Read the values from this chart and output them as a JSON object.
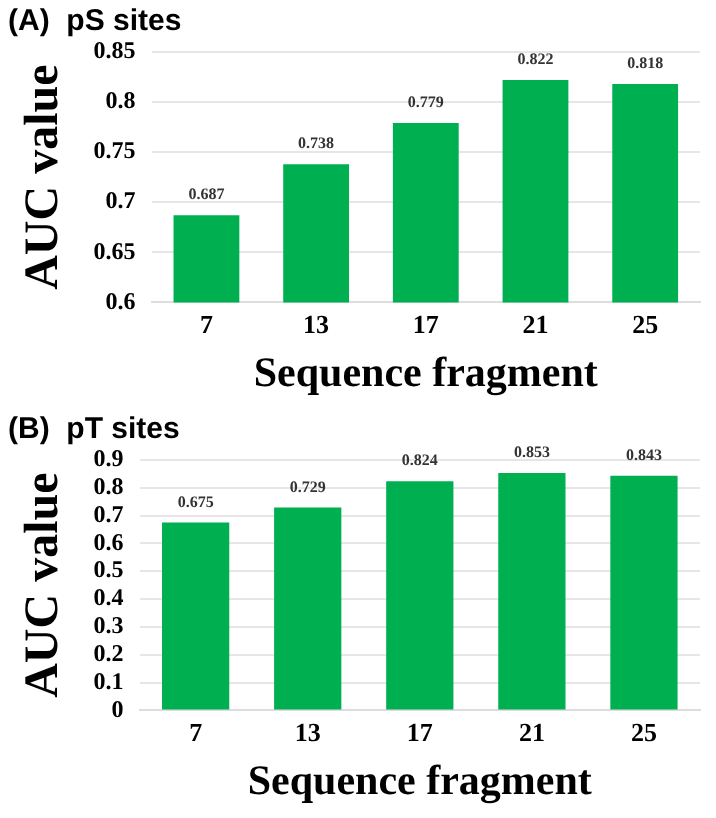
{
  "chart_data": [
    {
      "type": "bar",
      "title": "(A)  pS sites",
      "xlabel": "Sequence fragment",
      "ylabel": "AUC value",
      "categories": [
        "7",
        "13",
        "17",
        "21",
        "25"
      ],
      "values": [
        0.687,
        0.738,
        0.779,
        0.822,
        0.818
      ],
      "color": "#00b050",
      "ylim": [
        0.6,
        0.85
      ],
      "yticks": [
        0.6,
        0.65,
        0.7,
        0.75,
        0.8,
        0.85
      ],
      "grid": "y",
      "data_labels": true,
      "legend": false
    },
    {
      "type": "bar",
      "title": "(B)  pT sites",
      "xlabel": "Sequence fragment",
      "ylabel": "AUC value",
      "categories": [
        "7",
        "13",
        "17",
        "21",
        "25"
      ],
      "values": [
        0.675,
        0.729,
        0.824,
        0.853,
        0.843
      ],
      "color": "#00b050",
      "ylim": [
        0,
        0.9
      ],
      "yticks": [
        0,
        0.1,
        0.2,
        0.3,
        0.4,
        0.5,
        0.6,
        0.7,
        0.8,
        0.9
      ],
      "grid": "y",
      "data_labels": true,
      "legend": false
    }
  ]
}
